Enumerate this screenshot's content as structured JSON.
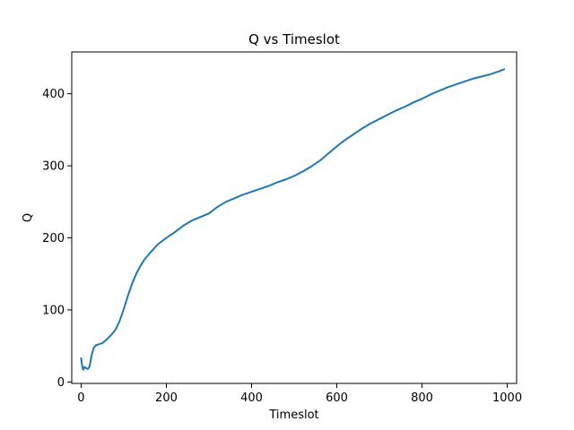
{
  "chart_data": {
    "type": "line",
    "title": "Q vs Timeslot",
    "xlabel": "Timeslot",
    "ylabel": "Q",
    "xlim": [
      -22,
      1022
    ],
    "ylim": [
      -2,
      458
    ],
    "xticks": [
      0,
      200,
      400,
      600,
      800,
      1000
    ],
    "yticks": [
      0,
      100,
      200,
      300,
      400
    ],
    "xtick_labels": [
      "0",
      "200",
      "400",
      "600",
      "800",
      "1000"
    ],
    "ytick_labels": [
      "0",
      "100",
      "200",
      "300",
      "400"
    ],
    "grid": false,
    "series": [
      {
        "color": "#1f77b4",
        "x": [
          0,
          3,
          5,
          8,
          12,
          16,
          20,
          25,
          30,
          35,
          40,
          50,
          60,
          70,
          80,
          90,
          100,
          110,
          120,
          130,
          140,
          150,
          160,
          180,
          200,
          220,
          240,
          260,
          280,
          300,
          320,
          340,
          360,
          380,
          400,
          420,
          440,
          460,
          480,
          500,
          520,
          540,
          560,
          580,
          600,
          620,
          640,
          660,
          680,
          700,
          720,
          740,
          760,
          780,
          800,
          820,
          840,
          860,
          880,
          900,
          920,
          940,
          960,
          980,
          993
        ],
        "y": [
          33,
          20,
          17,
          21,
          19,
          18,
          22,
          38,
          48,
          51,
          52,
          54,
          59,
          65,
          72,
          84,
          101,
          120,
          137,
          151,
          162,
          171,
          178,
          191,
          200,
          208,
          217,
          224,
          229,
          234,
          243,
          250,
          255,
          260,
          264,
          268,
          272,
          277,
          281,
          286,
          292,
          299,
          307,
          317,
          327,
          336,
          344,
          352,
          359,
          365,
          371,
          377,
          382,
          388,
          393,
          399,
          404,
          409,
          413,
          417,
          421,
          424,
          427,
          431,
          434
        ]
      }
    ]
  }
}
